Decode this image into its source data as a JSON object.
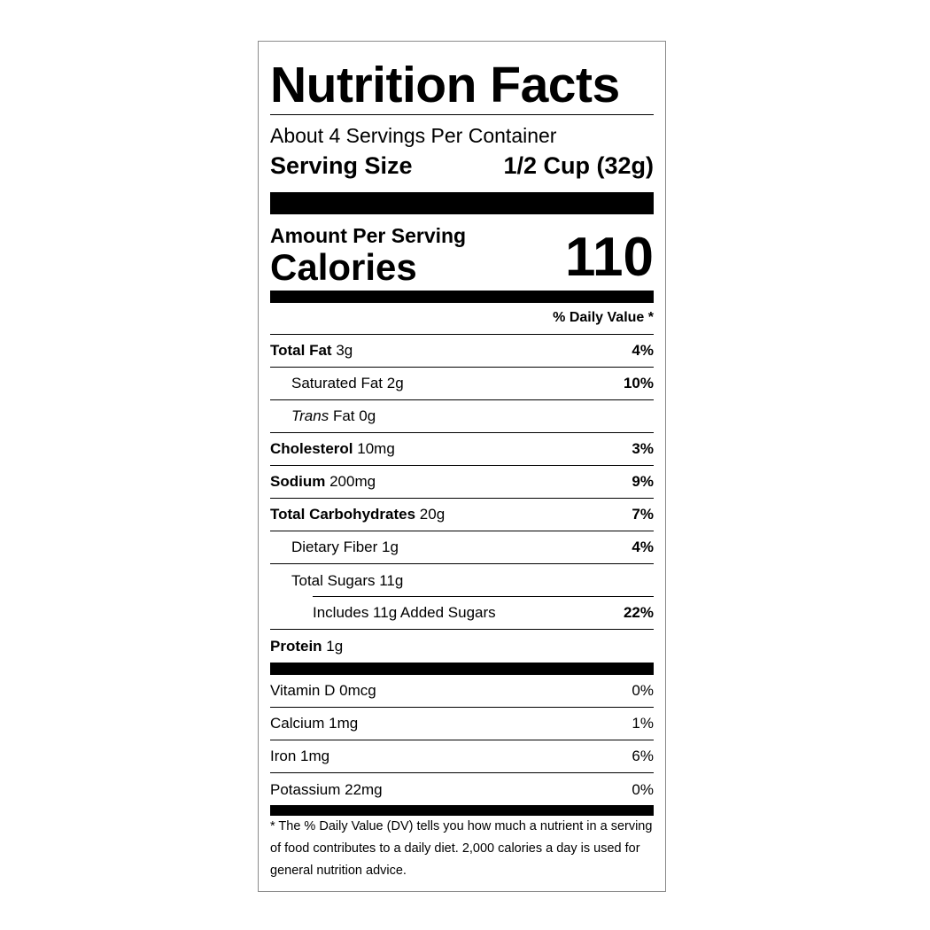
{
  "title": "Nutrition Facts",
  "servings_per_container": "About 4 Servings Per Container",
  "serving_size": {
    "label": "Serving Size",
    "value": "1/2 Cup (32g)"
  },
  "amount_per_serving": "Amount Per Serving",
  "calories": {
    "label": "Calories",
    "value": "110"
  },
  "dv_header": "% Daily Value *",
  "nutrients": [
    {
      "name": "Total Fat",
      "amount": "3g",
      "dv": "4%",
      "bold": true,
      "indent": 0
    },
    {
      "name": "Saturated Fat",
      "amount": "2g",
      "dv": "10%",
      "bold": false,
      "indent": 1
    },
    {
      "name": "Trans",
      "name_suffix": "Fat",
      "amount": "0g",
      "dv": "",
      "bold": false,
      "indent": 1
    },
    {
      "name": "Cholesterol",
      "amount": "10mg",
      "dv": "3%",
      "bold": true,
      "indent": 0
    },
    {
      "name": "Sodium",
      "amount": "200mg",
      "dv": "9%",
      "bold": true,
      "indent": 0
    },
    {
      "name": "Total Carbohydrates",
      "amount": "20g",
      "dv": "7%",
      "bold": true,
      "indent": 0
    },
    {
      "name": "Dietary Fiber",
      "amount": "1g",
      "dv": "4%",
      "bold": false,
      "indent": 1
    },
    {
      "name": "Total Sugars",
      "amount": "11g",
      "dv": "",
      "bold": false,
      "indent": 1
    },
    {
      "name": "Includes 11g Added Sugars",
      "amount": "",
      "dv": "22%",
      "bold": false,
      "indent": 2
    },
    {
      "name": "Protein",
      "amount": "1g",
      "dv": "",
      "bold": true,
      "indent": 0
    }
  ],
  "vitamins": [
    {
      "name": "Vitamin D",
      "amount": "0mcg",
      "dv": "0%"
    },
    {
      "name": "Calcium",
      "amount": "1mg",
      "dv": "1%"
    },
    {
      "name": "Iron",
      "amount": "1mg",
      "dv": "6%"
    },
    {
      "name": "Potassium",
      "amount": "22mg",
      "dv": "0%"
    }
  ],
  "footnote": "* The % Daily Value (DV) tells you how much a nutrient in a serving of food contributes to a daily diet. 2,000 calories a day is used for general nutrition advice."
}
